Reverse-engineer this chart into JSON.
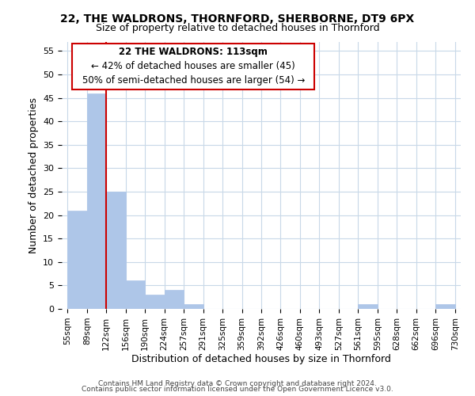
{
  "title1": "22, THE WALDRONS, THORNFORD, SHERBORNE, DT9 6PX",
  "title2": "Size of property relative to detached houses in Thornford",
  "xlabel": "Distribution of detached houses by size in Thornford",
  "ylabel": "Number of detached properties",
  "bin_labels": [
    "55sqm",
    "89sqm",
    "122sqm",
    "156sqm",
    "190sqm",
    "224sqm",
    "257sqm",
    "291sqm",
    "325sqm",
    "359sqm",
    "392sqm",
    "426sqm",
    "460sqm",
    "493sqm",
    "527sqm",
    "561sqm",
    "595sqm",
    "628sqm",
    "662sqm",
    "696sqm",
    "730sqm"
  ],
  "bar_values": [
    21,
    46,
    25,
    6,
    3,
    4,
    1,
    0,
    0,
    0,
    0,
    0,
    0,
    0,
    0,
    1,
    0,
    0,
    0,
    1,
    0
  ],
  "bar_color": "#aec6e8",
  "bar_edge_color": "#aec6e8",
  "property_line_bin_index": 2,
  "annotation_title": "22 THE WALDRONS: 113sqm",
  "annotation_line1": "← 42% of detached houses are smaller (45)",
  "annotation_line2": "50% of semi-detached houses are larger (54) →",
  "annotation_box_color": "#ffffff",
  "annotation_box_edge_color": "#cc0000",
  "property_line_color": "#cc0000",
  "ylim": [
    0,
    57
  ],
  "yticks": [
    0,
    5,
    10,
    15,
    20,
    25,
    30,
    35,
    40,
    45,
    50,
    55
  ],
  "footer1": "Contains HM Land Registry data © Crown copyright and database right 2024.",
  "footer2": "Contains public sector information licensed under the Open Government Licence v3.0.",
  "background_color": "#ffffff",
  "grid_color": "#c8d8e8",
  "title1_fontsize": 10,
  "title2_fontsize": 9,
  "xlabel_fontsize": 9,
  "ylabel_fontsize": 9,
  "tick_fontsize": 7.5,
  "footer_fontsize": 6.5,
  "annot_fontsize": 8.5
}
